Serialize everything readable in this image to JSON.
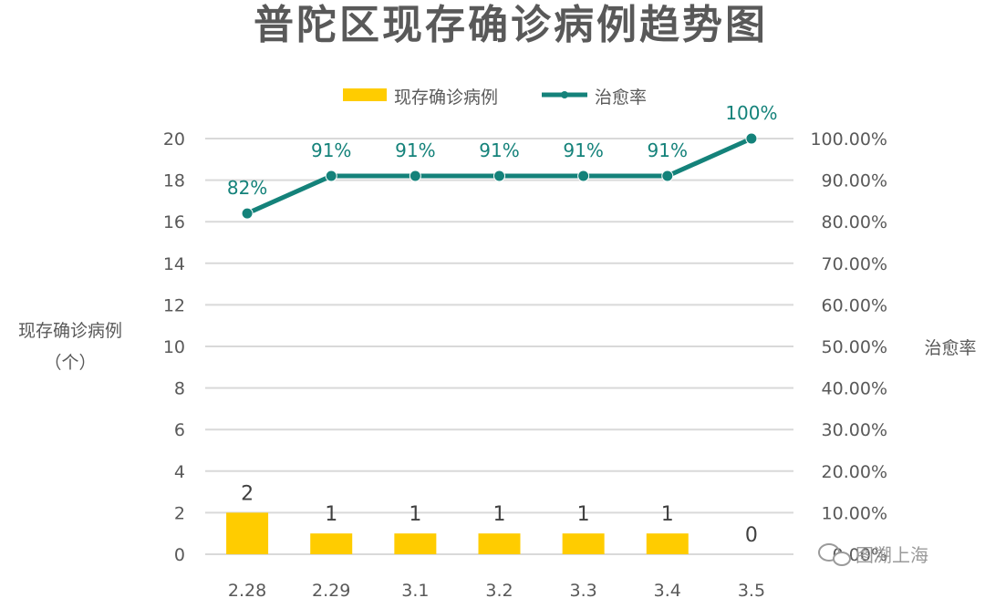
{
  "chart_data": {
    "type": "bar",
    "title": "普陀区现存确诊病例趋势图",
    "categories": [
      "2.28",
      "2.29",
      "3.1",
      "3.2",
      "3.3",
      "3.4",
      "3.5"
    ],
    "series": [
      {
        "name": "现存确诊病例",
        "type": "bar",
        "axis": "left",
        "values": [
          2,
          1,
          1,
          1,
          1,
          1,
          0
        ],
        "value_labels": [
          "2",
          "1",
          "1",
          "1",
          "1",
          "1",
          "0"
        ],
        "color": "#ffcc00"
      },
      {
        "name": "治愈率",
        "type": "line",
        "axis": "right",
        "values": [
          0.82,
          0.91,
          0.91,
          0.91,
          0.91,
          0.91,
          1.0
        ],
        "value_labels": [
          "82%",
          "91%",
          "91%",
          "91%",
          "91%",
          "91%",
          "100%"
        ],
        "color": "#14827a"
      }
    ],
    "ylabel_left": [
      "现存确诊病例",
      "（个）"
    ],
    "ylabel_right": "治愈率",
    "y_left_lim": [
      0,
      20
    ],
    "y_left_ticks": [
      "0",
      "2",
      "4",
      "6",
      "8",
      "10",
      "12",
      "14",
      "16",
      "18",
      "20"
    ],
    "y_right_lim": [
      0,
      1
    ],
    "y_right_ticks": [
      "0.00%",
      "10.00%",
      "20.00%",
      "30.00%",
      "40.00%",
      "50.00%",
      "60.00%",
      "70.00%",
      "80.00%",
      "90.00%",
      "100.00%"
    ],
    "grid": true,
    "legend_position": "top"
  },
  "watermark": "图溯上海"
}
